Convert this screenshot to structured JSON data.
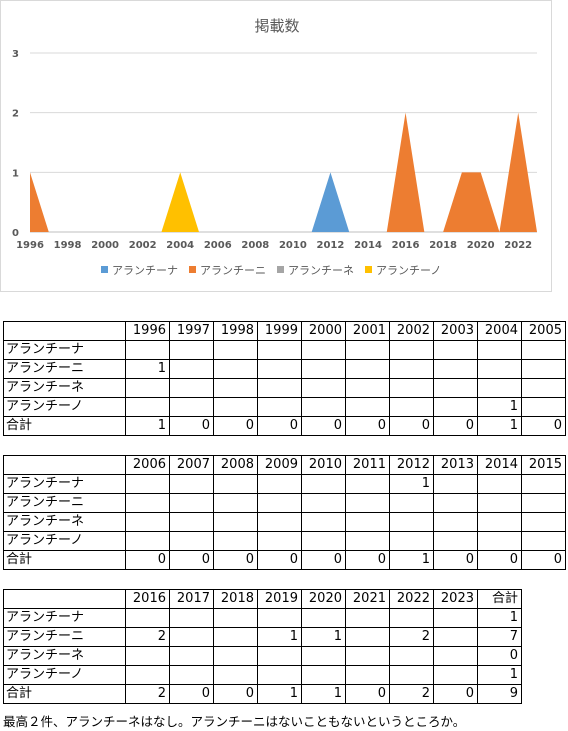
{
  "chart_data": {
    "type": "area",
    "title": "掲載数",
    "x": [
      1996,
      1997,
      1998,
      1999,
      2000,
      2001,
      2002,
      2003,
      2004,
      2005,
      2006,
      2007,
      2008,
      2009,
      2010,
      2011,
      2012,
      2013,
      2014,
      2015,
      2016,
      2017,
      2018,
      2019,
      2020,
      2021,
      2022,
      2023
    ],
    "xticks": [
      "1996",
      "1998",
      "2000",
      "2002",
      "2004",
      "2006",
      "2008",
      "2010",
      "2012",
      "2014",
      "2016",
      "2018",
      "2020",
      "2022"
    ],
    "yticks": [
      "0",
      "1",
      "2",
      "3"
    ],
    "ylim": [
      0,
      3
    ],
    "grid": true,
    "legend_position": "bottom",
    "series": [
      {
        "name": "アランチーナ",
        "color": "#5b9bd5",
        "values": [
          0,
          0,
          0,
          0,
          0,
          0,
          0,
          0,
          0,
          0,
          0,
          0,
          0,
          0,
          0,
          0,
          1,
          0,
          0,
          0,
          0,
          0,
          0,
          0,
          0,
          0,
          0,
          0
        ]
      },
      {
        "name": "アランチーニ",
        "color": "#ed7d31",
        "values": [
          1,
          0,
          0,
          0,
          0,
          0,
          0,
          0,
          0,
          0,
          0,
          0,
          0,
          0,
          0,
          0,
          0,
          0,
          0,
          0,
          2,
          0,
          0,
          1,
          1,
          0,
          2,
          0
        ]
      },
      {
        "name": "アランチーネ",
        "color": "#a5a5a5",
        "values": [
          0,
          0,
          0,
          0,
          0,
          0,
          0,
          0,
          0,
          0,
          0,
          0,
          0,
          0,
          0,
          0,
          0,
          0,
          0,
          0,
          0,
          0,
          0,
          0,
          0,
          0,
          0,
          0
        ]
      },
      {
        "name": "アランチーノ",
        "color": "#ffc000",
        "values": [
          0,
          0,
          0,
          0,
          0,
          0,
          0,
          0,
          1,
          0,
          0,
          0,
          0,
          0,
          0,
          0,
          0,
          0,
          0,
          0,
          0,
          0,
          0,
          0,
          0,
          0,
          0,
          0
        ]
      }
    ]
  },
  "tables": [
    {
      "years": [
        "1996",
        "1997",
        "1998",
        "1999",
        "2000",
        "2001",
        "2002",
        "2003",
        "2004",
        "2005"
      ],
      "rows": [
        {
          "label": "アランチーナ",
          "cells": [
            "",
            "",
            "",
            "",
            "",
            "",
            "",
            "",
            "",
            ""
          ]
        },
        {
          "label": "アランチーニ",
          "cells": [
            "1",
            "",
            "",
            "",
            "",
            "",
            "",
            "",
            "",
            ""
          ]
        },
        {
          "label": "アランチーネ",
          "cells": [
            "",
            "",
            "",
            "",
            "",
            "",
            "",
            "",
            "",
            ""
          ]
        },
        {
          "label": "アランチーノ",
          "cells": [
            "",
            "",
            "",
            "",
            "",
            "",
            "",
            "",
            "1",
            ""
          ]
        },
        {
          "label": "合計",
          "cells": [
            "1",
            "0",
            "0",
            "0",
            "0",
            "0",
            "0",
            "0",
            "1",
            "0"
          ]
        }
      ]
    },
    {
      "years": [
        "2006",
        "2007",
        "2008",
        "2009",
        "2010",
        "2011",
        "2012",
        "2013",
        "2014",
        "2015"
      ],
      "rows": [
        {
          "label": "アランチーナ",
          "cells": [
            "",
            "",
            "",
            "",
            "",
            "",
            "1",
            "",
            "",
            ""
          ]
        },
        {
          "label": "アランチーニ",
          "cells": [
            "",
            "",
            "",
            "",
            "",
            "",
            "",
            "",
            "",
            ""
          ]
        },
        {
          "label": "アランチーネ",
          "cells": [
            "",
            "",
            "",
            "",
            "",
            "",
            "",
            "",
            "",
            ""
          ]
        },
        {
          "label": "アランチーノ",
          "cells": [
            "",
            "",
            "",
            "",
            "",
            "",
            "",
            "",
            "",
            ""
          ]
        },
        {
          "label": "合計",
          "cells": [
            "0",
            "0",
            "0",
            "0",
            "0",
            "0",
            "1",
            "0",
            "0",
            "0"
          ]
        }
      ]
    },
    {
      "years": [
        "2016",
        "2017",
        "2018",
        "2019",
        "2020",
        "2021",
        "2022",
        "2023",
        "合計"
      ],
      "rows": [
        {
          "label": "アランチーナ",
          "cells": [
            "",
            "",
            "",
            "",
            "",
            "",
            "",
            "",
            "1"
          ]
        },
        {
          "label": "アランチーニ",
          "cells": [
            "2",
            "",
            "",
            "1",
            "1",
            "",
            "2",
            "",
            "7"
          ]
        },
        {
          "label": "アランチーネ",
          "cells": [
            "",
            "",
            "",
            "",
            "",
            "",
            "",
            "",
            "0"
          ]
        },
        {
          "label": "アランチーノ",
          "cells": [
            "",
            "",
            "",
            "",
            "",
            "",
            "",
            "",
            "1"
          ]
        },
        {
          "label": "合計",
          "cells": [
            "2",
            "0",
            "0",
            "1",
            "1",
            "0",
            "2",
            "0",
            "9"
          ]
        }
      ]
    }
  ],
  "note": "最高２件、アランチーネはなし。アランチーニはないこともないというところか。"
}
